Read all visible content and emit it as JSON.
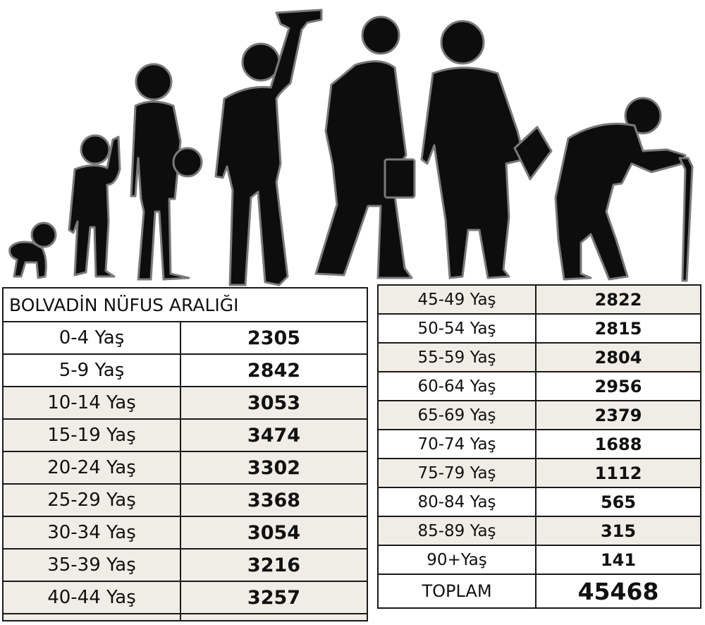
{
  "title": "BOLVADİN NÜFUS ARALIĞI",
  "left_rows": [
    {
      "age": "0-4  Yaş",
      "count": "2305"
    },
    {
      "age": "5-9 Yaş",
      "count": "2842"
    },
    {
      "age": "10-14 Yaş",
      "count": "3053"
    },
    {
      "age": "15-19 Yaş",
      "count": "3474"
    },
    {
      "age": "20-24 Yaş",
      "count": "3302"
    },
    {
      "age": "25-29 Yaş",
      "count": "3368"
    },
    {
      "age": "30-34 Yaş",
      "count": "3054"
    },
    {
      "age": "35-39 Yaş",
      "count": "3216"
    },
    {
      "age": "40-44 Yaş",
      "count": "3257"
    }
  ],
  "right_rows": [
    {
      "age": "45-49 Yaş",
      "count": "2822"
    },
    {
      "age": "50-54 Yaş",
      "count": "2815"
    },
    {
      "age": "55-59 Yaş",
      "count": "2804"
    },
    {
      "age": "60-64 Yaş",
      "count": "2956"
    },
    {
      "age": "65-69 Yaş",
      "count": "2379"
    },
    {
      "age": "70-74 Yaş",
      "count": "1688"
    },
    {
      "age": "75-79 Yaş",
      "count": "1112"
    },
    {
      "age": "80-84 Yaş",
      "count": "565"
    },
    {
      "age": "85-89 Yaş",
      "count": "315"
    },
    {
      "age": "90+Yaş",
      "count": "141"
    }
  ],
  "total": {
    "label": "TOPLAM",
    "value": "45468"
  },
  "colors": {
    "row_shade": "#efede5",
    "silhouette": "#0d0d0d",
    "border": "#1a1a1a"
  }
}
